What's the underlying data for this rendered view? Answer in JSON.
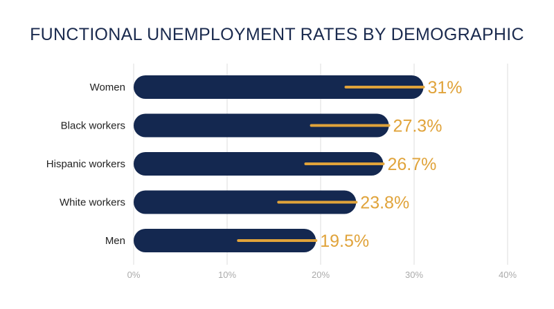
{
  "chart_data": {
    "type": "bar",
    "orientation": "horizontal",
    "title": "FUNCTIONAL UNEMPLOYMENT RATES BY DEMOGRAPHIC",
    "categories": [
      "Women",
      "Black workers",
      "Hispanic workers",
      "White workers",
      "Men"
    ],
    "values": [
      31,
      27.3,
      26.7,
      23.8,
      19.5
    ],
    "value_labels": [
      "31%",
      "27.3%",
      "26.7%",
      "23.8%",
      "19.5%"
    ],
    "xlim": [
      0,
      40
    ],
    "xticks": [
      0,
      10,
      20,
      30,
      40
    ],
    "xtick_labels": [
      "0%",
      "10%",
      "20%",
      "30%",
      "40%"
    ],
    "grid": true,
    "colors": {
      "bar": "#142850",
      "accent": "#e0a33a",
      "grid": "#dddddd",
      "tick": "#aaaaaa",
      "category": "#222222",
      "title": "#1a2a4e"
    }
  }
}
